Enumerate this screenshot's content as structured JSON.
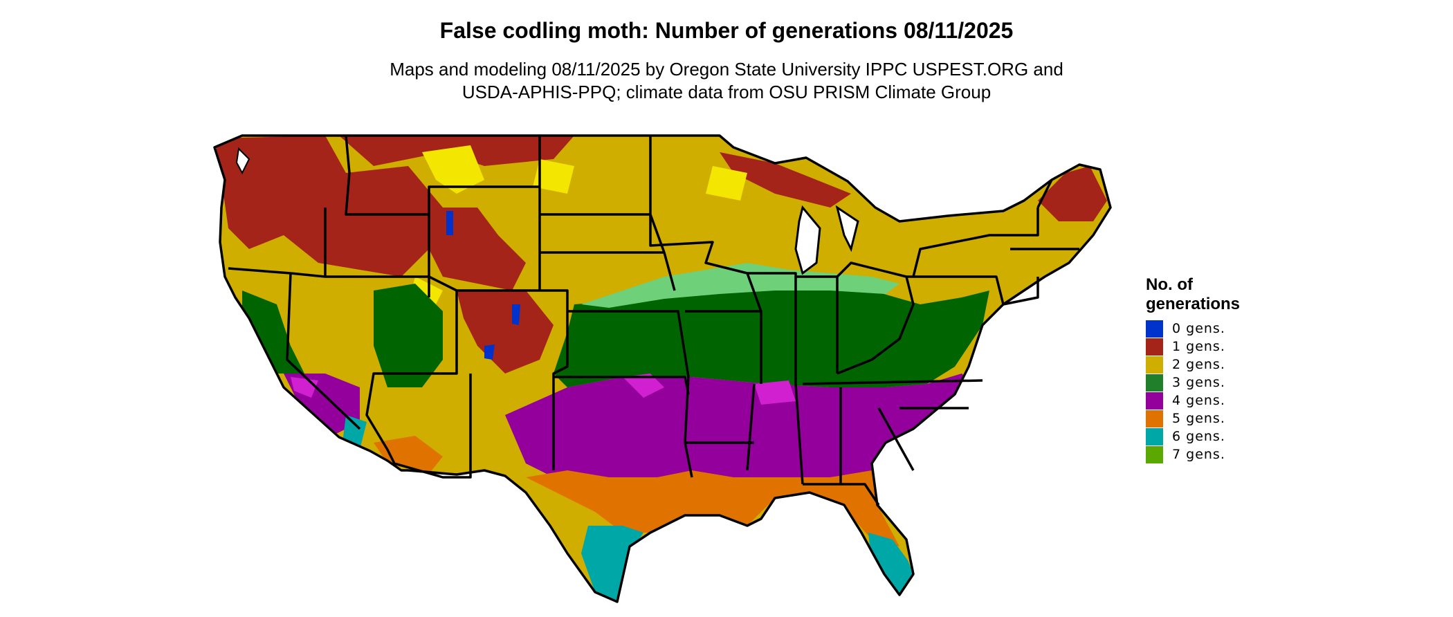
{
  "title": "False codling moth: Number of generations 08/11/2025",
  "subtitle": {
    "line1": "Maps and modeling 08/11/2025 by Oregon State University IPPC USPEST.ORG and",
    "line2": "USDA-APHIS-PPQ; climate data from OSU PRISM Climate Group"
  },
  "legend": {
    "title_line1": "No. of",
    "title_line2": "generations",
    "items": [
      {
        "label": "0 gens.",
        "color": "#0033cc"
      },
      {
        "label": "1 gens.",
        "color": "#a52419"
      },
      {
        "label": "2 gens.",
        "color": "#cfae00"
      },
      {
        "label": "3 gens.",
        "color": "#1f7f2a"
      },
      {
        "label": "4 gens.",
        "color": "#94009c"
      },
      {
        "label": "5 gens.",
        "color": "#e07300"
      },
      {
        "label": "6 gens.",
        "color": "#00a7a7"
      },
      {
        "label": "7 gens.",
        "color": "#5aa800"
      }
    ]
  },
  "map_colors": {
    "land_base": "#cfae00",
    "three_gens_dark": "#006400",
    "light_green": "#6fd07a",
    "bright_yellow": "#f3e600",
    "magenta": "#d020d0",
    "border": "#000000"
  }
}
